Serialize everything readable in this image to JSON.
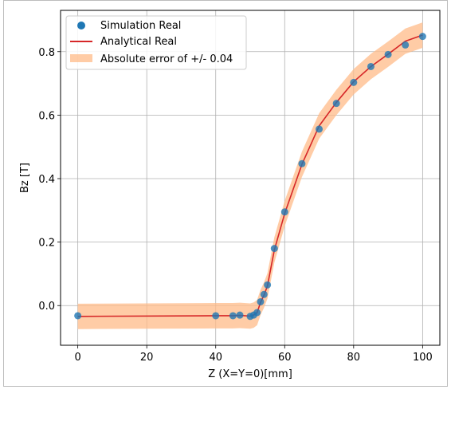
{
  "chart_data": {
    "type": "scatter",
    "xlabel": "Z (X=Y=0)[mm]",
    "ylabel": "Bz [T]",
    "xlim": [
      -5,
      105
    ],
    "ylim": [
      -0.125,
      0.93
    ],
    "x_ticks": [
      0,
      20,
      40,
      60,
      80,
      100
    ],
    "x_tick_labels": [
      "0",
      "20",
      "40",
      "60",
      "80",
      "100"
    ],
    "y_ticks": [
      0.0,
      0.2,
      0.4,
      0.6,
      0.8
    ],
    "y_tick_labels": [
      "0.0",
      "0.2",
      "0.4",
      "0.6",
      "0.8"
    ],
    "grid": true,
    "legend_position": "top-left",
    "series": [
      {
        "name": "Simulation Real",
        "kind": "scatter",
        "color": "#1f77b4",
        "x": [
          0,
          40,
          45,
          47,
          50,
          51,
          52,
          53,
          54,
          55,
          57,
          60,
          65,
          70,
          75,
          80,
          85,
          90,
          95,
          100
        ],
        "y": [
          -0.032,
          -0.032,
          -0.032,
          -0.03,
          -0.034,
          -0.03,
          -0.022,
          0.012,
          0.035,
          0.065,
          0.18,
          0.295,
          0.447,
          0.556,
          0.637,
          0.703,
          0.753,
          0.791,
          0.821,
          0.848
        ]
      },
      {
        "name": "Analytical Real",
        "kind": "line",
        "color": "#d62728",
        "x": [
          0,
          40,
          45,
          47,
          50,
          51,
          52,
          53,
          54,
          55,
          57,
          60,
          65,
          70,
          75,
          80,
          85,
          90,
          95,
          100
        ],
        "y": [
          -0.034,
          -0.032,
          -0.032,
          -0.031,
          -0.033,
          -0.03,
          -0.022,
          0.01,
          0.033,
          0.062,
          0.175,
          0.29,
          0.445,
          0.566,
          0.64,
          0.705,
          0.753,
          0.792,
          0.833,
          0.852
        ]
      },
      {
        "name": "Absolute error of +/- 0.04",
        "kind": "band",
        "color": "#ffbb88",
        "error": 0.04
      }
    ]
  }
}
